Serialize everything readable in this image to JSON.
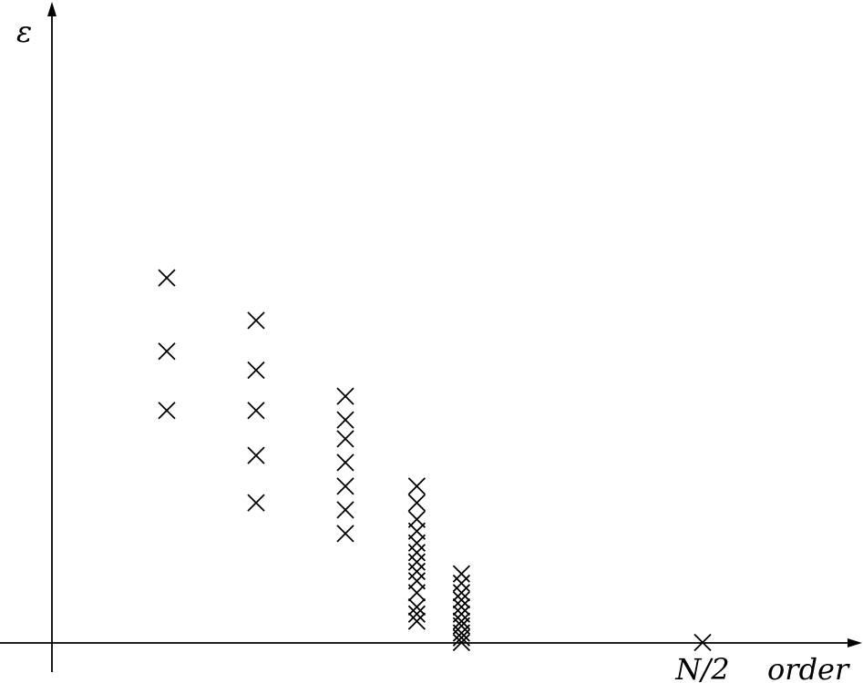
{
  "chart_data": {
    "type": "scatter",
    "marker": "x",
    "ylabel": "ε",
    "xlabel": "order",
    "tick_labels": [
      {
        "x": 7,
        "label": "N/2"
      }
    ],
    "points": [
      {
        "x": 1,
        "y": 0.77
      },
      {
        "x": 1,
        "y": 0.615
      },
      {
        "x": 1,
        "y": 0.49
      },
      {
        "x": 2,
        "y": 0.68
      },
      {
        "x": 2,
        "y": 0.575
      },
      {
        "x": 2,
        "y": 0.49
      },
      {
        "x": 2,
        "y": 0.395
      },
      {
        "x": 2,
        "y": 0.295
      },
      {
        "x": 3,
        "y": 0.52
      },
      {
        "x": 3,
        "y": 0.47
      },
      {
        "x": 3,
        "y": 0.43
      },
      {
        "x": 3,
        "y": 0.38
      },
      {
        "x": 3,
        "y": 0.33
      },
      {
        "x": 3,
        "y": 0.28
      },
      {
        "x": 3,
        "y": 0.23
      },
      {
        "x": 3.8,
        "y": 0.33
      },
      {
        "x": 3.8,
        "y": 0.295
      },
      {
        "x": 3.8,
        "y": 0.26
      },
      {
        "x": 3.8,
        "y": 0.235
      },
      {
        "x": 3.8,
        "y": 0.21
      },
      {
        "x": 3.8,
        "y": 0.19
      },
      {
        "x": 3.8,
        "y": 0.17
      },
      {
        "x": 3.8,
        "y": 0.15
      },
      {
        "x": 3.8,
        "y": 0.13
      },
      {
        "x": 3.8,
        "y": 0.105
      },
      {
        "x": 3.8,
        "y": 0.075
      },
      {
        "x": 3.8,
        "y": 0.06
      },
      {
        "x": 3.8,
        "y": 0.045
      },
      {
        "x": 4.3,
        "y": 0.145
      },
      {
        "x": 4.3,
        "y": 0.125
      },
      {
        "x": 4.3,
        "y": 0.105
      },
      {
        "x": 4.3,
        "y": 0.09
      },
      {
        "x": 4.3,
        "y": 0.075
      },
      {
        "x": 4.3,
        "y": 0.06
      },
      {
        "x": 4.3,
        "y": 0.045
      },
      {
        "x": 4.3,
        "y": 0.035
      },
      {
        "x": 4.3,
        "y": 0.02
      },
      {
        "x": 4.3,
        "y": 0.01
      },
      {
        "x": 4.3,
        "y": 0.0
      },
      {
        "x": 7,
        "y": 0.0
      }
    ],
    "xlim": [
      0,
      8.2
    ],
    "ylim": [
      0,
      1
    ],
    "grid": false,
    "legend": "none",
    "colors": {
      "axis": "#000000",
      "marker": "#000000",
      "background": "#ffffff"
    }
  }
}
